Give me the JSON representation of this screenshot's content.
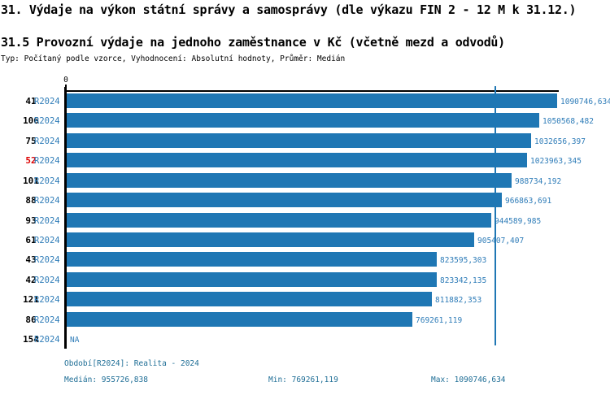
{
  "header": {
    "title_line1": "31. Výdaje na výkon státní správy a samosprávy (dle výkazu FIN 2 - 12 M k 31.12.)",
    "title_line2": "31.5 Provozní výdaje na jednoho zaměstnance v Kč (včetně mezd a odvodů)",
    "meta_line": "Typ: Počítaný podle vzorce, Vyhodnocení: Absolutní hodnoty, Průměr: Medián"
  },
  "chart_data": {
    "type": "bar",
    "orientation": "horizontal",
    "title": "31.5 Provozní výdaje na jednoho zaměstnance v Kč (včetně mezd a odvodů)",
    "axis_zero_label": "0",
    "period_label": "R2024",
    "categories": [
      "41",
      "106",
      "75",
      "52",
      "101",
      "88",
      "93",
      "61",
      "43",
      "42",
      "121",
      "86",
      "154"
    ],
    "values": [
      1090746.634,
      1050568.482,
      1032656.397,
      1023963.345,
      988734.192,
      966863.691,
      944589.985,
      905407.407,
      823595.303,
      823342.135,
      811882.353,
      769261.119,
      null
    ],
    "value_labels": [
      "1090746,634",
      "1050568,482",
      "1032656,397",
      "1023963,345",
      "988734,192",
      "966863,691",
      "944589,985",
      "905407,407",
      "823595,303",
      "823342,135",
      "811882,353",
      "769261,119",
      "NA"
    ],
    "na_label": "NA",
    "highlighted_category": "52",
    "axis_min": 0,
    "axis_max": 1090746.634,
    "median": 955726.838,
    "min": 769261.119,
    "max": 1090746.634,
    "legend_position": "none",
    "grid": false,
    "colors": {
      "bar": "#1f77b4",
      "median_line": "#1f77b4",
      "value_text": "#2e7cb8",
      "highlight_text": "#dd0000",
      "footer_text": "#1f6e96",
      "axis": "#000000"
    }
  },
  "footer": {
    "period": "Období[R2024]: Realita - 2024",
    "median": "Medián: 955726,838",
    "min": "Min: 769261,119",
    "max": "Max: 1090746,634"
  }
}
